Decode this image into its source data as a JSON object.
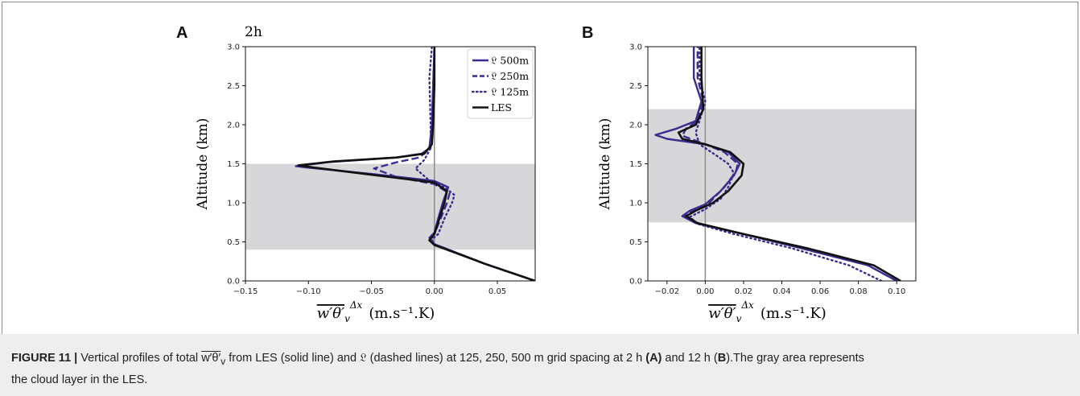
{
  "figure": {
    "caption_label": "FIGURE 11 |",
    "caption_text": "Vertical profiles of total w′θ′v from LES (solid line) and 𝔏 (dashed lines) at 125, 250, 500 m grid spacing at 2 h (A) and 12 h (B). The gray area represents the cloud layer in the LES.",
    "caption_parts": {
      "p1": "Vertical profiles of total ",
      "sym": "w′θ′",
      "sub": "v",
      "p2": " from LES (solid line) and 𝔏 (dashed lines) at 125, 250, 500 m grid spacing at 2 h ",
      "A": "(A)",
      "p3": " and 12 h (",
      "B": "B",
      "p4": ").The gray area represents",
      "p5": "the cloud layer in the LES."
    }
  },
  "colors": {
    "model": "#3a2d8f",
    "les": "#111111",
    "cloud": "#d7d7d9",
    "zero_line": "#8c8c8c"
  },
  "chart_data": [
    {
      "type": "line",
      "panel": "A",
      "annotation": "2h",
      "xlabel": "w′θ′v^Δx (m.s⁻¹.K)",
      "xlabel_parts": {
        "main": "w′θ′",
        "sub": "v",
        "sup": "Δx",
        "unit": "(m.s⁻¹.K)"
      },
      "ylabel": "Altitude (km)",
      "xlim": [
        -0.15,
        0.08
      ],
      "ylim": [
        0,
        3.0
      ],
      "xticks": [
        -0.15,
        -0.1,
        -0.05,
        0.0,
        0.05
      ],
      "xtick_labels": [
        "−0.15",
        "−0.10",
        "−0.05",
        "0.00",
        "0.05"
      ],
      "yticks": [
        0.0,
        0.5,
        1.0,
        1.5,
        2.0,
        2.5,
        3.0
      ],
      "ytick_labels": [
        "0.0",
        "0.5",
        "1.0",
        "1.5",
        "2.0",
        "2.5",
        "3.0"
      ],
      "shade": {
        "y": [
          0.4,
          1.5
        ],
        "meaning": "cloud layer"
      },
      "vline_x": 0.0,
      "legend": {
        "placement": "top-right"
      },
      "series": [
        {
          "name": "𝔏 500m",
          "style": "solid",
          "color": "#3a2d8f",
          "points": [
            [
              0.08,
              0.0
            ],
            [
              0.04,
              0.22
            ],
            [
              0.0,
              0.47
            ],
            [
              -0.004,
              0.55
            ],
            [
              0.0,
              0.62
            ],
            [
              0.003,
              0.8
            ],
            [
              0.007,
              1.02
            ],
            [
              0.011,
              1.2
            ],
            [
              0.0,
              1.28
            ],
            [
              -0.05,
              1.37
            ],
            [
              -0.1,
              1.45
            ],
            [
              -0.11,
              1.47
            ],
            [
              -0.085,
              1.52
            ],
            [
              -0.03,
              1.58
            ],
            [
              -0.01,
              1.63
            ],
            [
              -0.004,
              1.7
            ],
            [
              -0.002,
              2.0
            ],
            [
              -0.001,
              2.5
            ],
            [
              0.0,
              3.0
            ]
          ]
        },
        {
          "name": "𝔏 250m",
          "style": "dashed",
          "color": "#3a2d8f",
          "points": [
            [
              0.08,
              0.0
            ],
            [
              0.04,
              0.22
            ],
            [
              0.0,
              0.47
            ],
            [
              -0.003,
              0.53
            ],
            [
              0.0,
              0.6
            ],
            [
              0.005,
              0.8
            ],
            [
              0.01,
              1.0
            ],
            [
              0.012,
              1.12
            ],
            [
              0.0,
              1.24
            ],
            [
              -0.03,
              1.33
            ],
            [
              -0.048,
              1.44
            ],
            [
              -0.03,
              1.52
            ],
            [
              -0.012,
              1.58
            ],
            [
              -0.003,
              1.7
            ],
            [
              -0.002,
              2.0
            ],
            [
              -0.001,
              2.5
            ],
            [
              0.0,
              3.0
            ]
          ]
        },
        {
          "name": "𝔏 125m",
          "style": "dotted",
          "color": "#3a2d8f",
          "points": [
            [
              0.08,
              0.0
            ],
            [
              0.04,
              0.22
            ],
            [
              0.0,
              0.47
            ],
            [
              -0.002,
              0.53
            ],
            [
              0.003,
              0.6
            ],
            [
              0.008,
              0.8
            ],
            [
              0.014,
              1.0
            ],
            [
              0.016,
              1.1
            ],
            [
              0.008,
              1.2
            ],
            [
              -0.005,
              1.3
            ],
            [
              -0.015,
              1.44
            ],
            [
              -0.008,
              1.55
            ],
            [
              -0.003,
              1.7
            ],
            [
              -0.003,
              2.0
            ],
            [
              -0.004,
              2.6
            ],
            [
              -0.002,
              3.0
            ]
          ]
        },
        {
          "name": "LES",
          "style": "solid",
          "color": "#111111",
          "points": [
            [
              0.08,
              0.0
            ],
            [
              0.04,
              0.22
            ],
            [
              0.0,
              0.46
            ],
            [
              -0.004,
              0.52
            ],
            [
              0.0,
              0.6
            ],
            [
              0.004,
              0.8
            ],
            [
              0.008,
              1.0
            ],
            [
              0.01,
              1.15
            ],
            [
              0.0,
              1.26
            ],
            [
              -0.05,
              1.36
            ],
            [
              -0.095,
              1.45
            ],
            [
              -0.108,
              1.48
            ],
            [
              -0.08,
              1.53
            ],
            [
              -0.03,
              1.58
            ],
            [
              -0.008,
              1.63
            ],
            [
              -0.002,
              1.75
            ],
            [
              -0.001,
              2.0
            ],
            [
              0.0,
              2.5
            ],
            [
              0.0,
              3.0
            ]
          ]
        }
      ]
    },
    {
      "type": "line",
      "panel": "B",
      "xlabel": "w′θ′v^Δx (m.s⁻¹.K)",
      "xlabel_parts": {
        "main": "w′θ′",
        "sub": "v",
        "sup": "Δx",
        "unit": "(m.s⁻¹.K)"
      },
      "ylabel": "Altitude (km)",
      "xlim": [
        -0.03,
        0.11
      ],
      "ylim": [
        0,
        3.0
      ],
      "xticks": [
        -0.02,
        0.0,
        0.02,
        0.04,
        0.06,
        0.08,
        0.1
      ],
      "xtick_labels": [
        "−0.02",
        "0.00",
        "0.02",
        "0.04",
        "0.06",
        "0.08",
        "0.10"
      ],
      "yticks": [
        0.0,
        0.5,
        1.0,
        1.5,
        2.0,
        2.5,
        3.0
      ],
      "ytick_labels": [
        "0.0",
        "0.5",
        "1.0",
        "1.5",
        "2.0",
        "2.5",
        "3.0"
      ],
      "shade": {
        "y": [
          0.75,
          2.2
        ],
        "meaning": "cloud layer"
      },
      "vline_x": 0.0,
      "series": [
        {
          "name": "𝔏 500m",
          "style": "solid",
          "color": "#3a2d8f",
          "points": [
            [
              0.1,
              0.0
            ],
            [
              0.085,
              0.2
            ],
            [
              0.05,
              0.42
            ],
            [
              0.02,
              0.6
            ],
            [
              -0.005,
              0.74
            ],
            [
              -0.012,
              0.83
            ],
            [
              -0.008,
              0.9
            ],
            [
              0.0,
              0.98
            ],
            [
              0.008,
              1.15
            ],
            [
              0.015,
              1.35
            ],
            [
              0.018,
              1.5
            ],
            [
              0.012,
              1.65
            ],
            [
              0.0,
              1.75
            ],
            [
              -0.02,
              1.82
            ],
            [
              -0.026,
              1.87
            ],
            [
              -0.015,
              1.95
            ],
            [
              -0.005,
              2.05
            ],
            [
              -0.002,
              2.3
            ],
            [
              -0.006,
              2.6
            ],
            [
              -0.006,
              3.0
            ]
          ]
        },
        {
          "name": "𝔏 250m",
          "style": "dashed",
          "color": "#3a2d8f",
          "points": [
            [
              0.1,
              0.0
            ],
            [
              0.085,
              0.2
            ],
            [
              0.05,
              0.42
            ],
            [
              0.02,
              0.6
            ],
            [
              -0.005,
              0.74
            ],
            [
              -0.011,
              0.83
            ],
            [
              -0.007,
              0.9
            ],
            [
              0.002,
              1.0
            ],
            [
              0.01,
              1.2
            ],
            [
              0.016,
              1.4
            ],
            [
              0.017,
              1.5
            ],
            [
              0.01,
              1.65
            ],
            [
              0.0,
              1.75
            ],
            [
              -0.012,
              1.86
            ],
            [
              -0.01,
              1.95
            ],
            [
              -0.004,
              2.05
            ],
            [
              -0.001,
              2.3
            ],
            [
              -0.004,
              2.6
            ],
            [
              -0.004,
              3.0
            ]
          ]
        },
        {
          "name": "𝔏 125m",
          "style": "dotted",
          "color": "#3a2d8f",
          "points": [
            [
              0.092,
              0.0
            ],
            [
              0.075,
              0.2
            ],
            [
              0.045,
              0.42
            ],
            [
              0.015,
              0.6
            ],
            [
              -0.004,
              0.73
            ],
            [
              -0.008,
              0.82
            ],
            [
              0.0,
              0.92
            ],
            [
              0.008,
              1.05
            ],
            [
              0.012,
              1.2
            ],
            [
              0.015,
              1.38
            ],
            [
              0.012,
              1.5
            ],
            [
              0.005,
              1.62
            ],
            [
              -0.003,
              1.75
            ],
            [
              -0.005,
              1.9
            ],
            [
              -0.003,
              2.05
            ],
            [
              0.0,
              2.3
            ],
            [
              -0.003,
              2.6
            ],
            [
              -0.003,
              3.0
            ]
          ]
        },
        {
          "name": "LES",
          "style": "solid",
          "color": "#111111",
          "points": [
            [
              0.102,
              0.0
            ],
            [
              0.088,
              0.2
            ],
            [
              0.053,
              0.42
            ],
            [
              0.02,
              0.6
            ],
            [
              -0.004,
              0.74
            ],
            [
              -0.01,
              0.83
            ],
            [
              -0.005,
              0.9
            ],
            [
              0.004,
              1.0
            ],
            [
              0.012,
              1.15
            ],
            [
              0.019,
              1.35
            ],
            [
              0.02,
              1.5
            ],
            [
              0.013,
              1.65
            ],
            [
              0.0,
              1.75
            ],
            [
              -0.012,
              1.82
            ],
            [
              -0.014,
              1.9
            ],
            [
              -0.005,
              2.0
            ],
            [
              -0.001,
              2.2
            ],
            [
              -0.002,
              2.6
            ],
            [
              -0.002,
              3.0
            ]
          ]
        }
      ]
    }
  ]
}
